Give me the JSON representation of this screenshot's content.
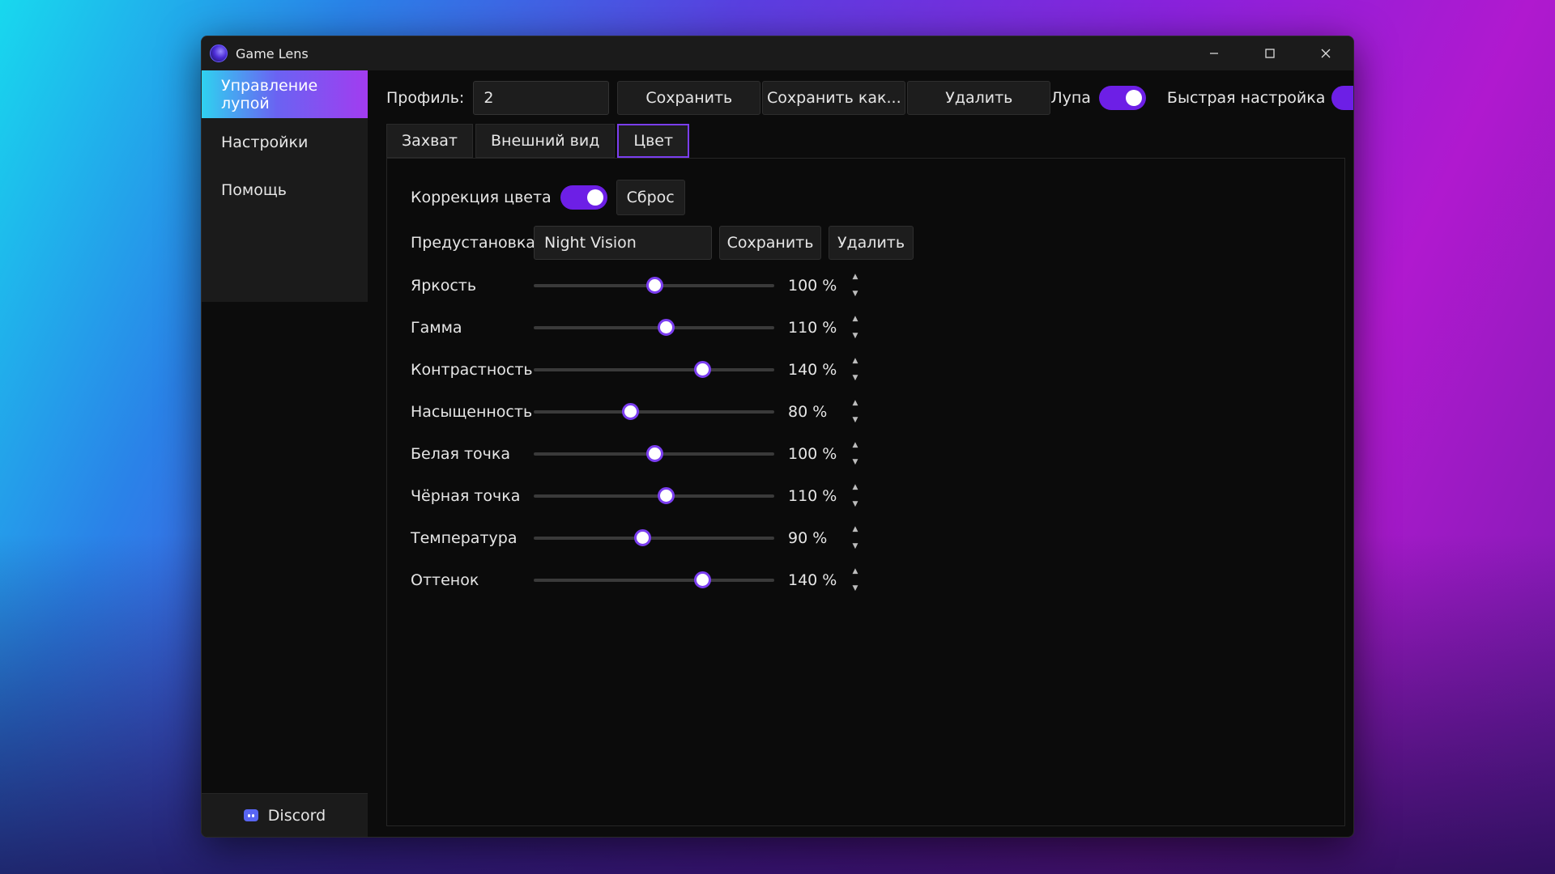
{
  "window": {
    "title": "Game Lens",
    "minimize_symbol": "─",
    "accent_color": "#6d1fe6"
  },
  "sidebar": {
    "items": [
      {
        "label": "Управление лупой",
        "active": true
      },
      {
        "label": "Настройки",
        "active": false
      },
      {
        "label": "Помощь",
        "active": false
      }
    ],
    "discord_label": "Discord"
  },
  "toolbar": {
    "profile_label": "Профиль:",
    "profile_value": "2",
    "save_label": "Сохранить",
    "save_as_label": "Сохранить как...",
    "delete_label": "Удалить",
    "magnifier_label": "Лупа",
    "magnifier_on": true,
    "quick_setup_label": "Быстрая настройка",
    "quick_setup_on": true
  },
  "tabs": [
    {
      "label": "Захват",
      "active": false
    },
    {
      "label": "Внешний вид",
      "active": false
    },
    {
      "label": "Цвет",
      "active": true
    }
  ],
  "color": {
    "correction_label": "Коррекция цвета",
    "correction_on": true,
    "reset_label": "Сброс",
    "preset_label": "Предустановка",
    "preset_value": "Night Vision",
    "preset_save_label": "Сохранить",
    "preset_delete_label": "Удалить",
    "sliders": [
      {
        "label": "Яркость",
        "value": 100,
        "display": "100 %"
      },
      {
        "label": "Гамма",
        "value": 110,
        "display": "110 %"
      },
      {
        "label": "Контрастность",
        "value": 140,
        "display": "140 %"
      },
      {
        "label": "Насыщенность",
        "value": 80,
        "display": "80 %"
      },
      {
        "label": "Белая точка",
        "value": 100,
        "display": "100 %"
      },
      {
        "label": "Чёрная точка",
        "value": 110,
        "display": "110 %"
      },
      {
        "label": "Температура",
        "value": 90,
        "display": "90 %"
      },
      {
        "label": "Оттенок",
        "value": 140,
        "display": "140 %"
      }
    ],
    "slider_min": 0,
    "slider_max": 200
  }
}
